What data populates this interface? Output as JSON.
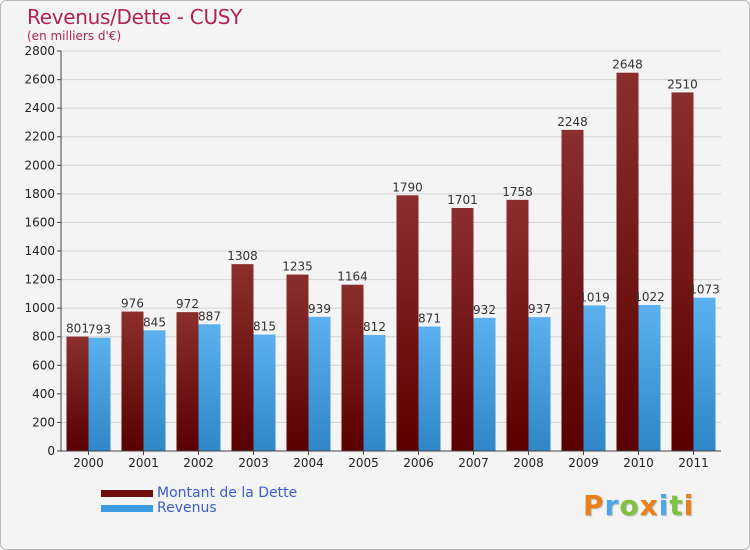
{
  "header": {
    "title": "Revenus/Dette - CUSY",
    "subtitle": "(en milliers d'€)"
  },
  "chart_data": {
    "type": "bar",
    "title": "Revenus/Dette - CUSY",
    "subtitle": "(en milliers d'€)",
    "categories": [
      "2000",
      "2001",
      "2002",
      "2003",
      "2004",
      "2005",
      "2006",
      "2007",
      "2008",
      "2009",
      "2010",
      "2011"
    ],
    "series": [
      {
        "name": "Montant de la Dette",
        "color": "#7a1c1c",
        "values": [
          801,
          976,
          972,
          1308,
          1235,
          1164,
          1790,
          1701,
          1758,
          2248,
          2648,
          2510
        ]
      },
      {
        "name": "Revenus",
        "color": "#4aa3e6",
        "values": [
          793,
          845,
          887,
          815,
          939,
          812,
          871,
          932,
          937,
          1019,
          1022,
          1073
        ]
      }
    ],
    "ylim": [
      0,
      2800
    ],
    "yticks": [
      0,
      200,
      400,
      600,
      800,
      1000,
      1200,
      1400,
      1600,
      1800,
      2000,
      2200,
      2400,
      2600,
      2800
    ],
    "grid": true,
    "legend_position": "bottom-left"
  },
  "legend": [
    {
      "label": "Montant de la Dette",
      "color": "#6e0e0e"
    },
    {
      "label": "Revenus",
      "color": "#3c9ae0"
    }
  ],
  "logo": {
    "letters": [
      {
        "ch": "P",
        "color": "#e8801c"
      },
      {
        "ch": "r",
        "color": "#4aa8e8"
      },
      {
        "ch": "o",
        "color": "#7fc242"
      },
      {
        "ch": "x",
        "color": "#e8801c"
      },
      {
        "ch": "i",
        "color": "#4aa8e8"
      },
      {
        "ch": "t",
        "color": "#7fc242"
      },
      {
        "ch": "i",
        "color": "#e8801c"
      }
    ]
  }
}
